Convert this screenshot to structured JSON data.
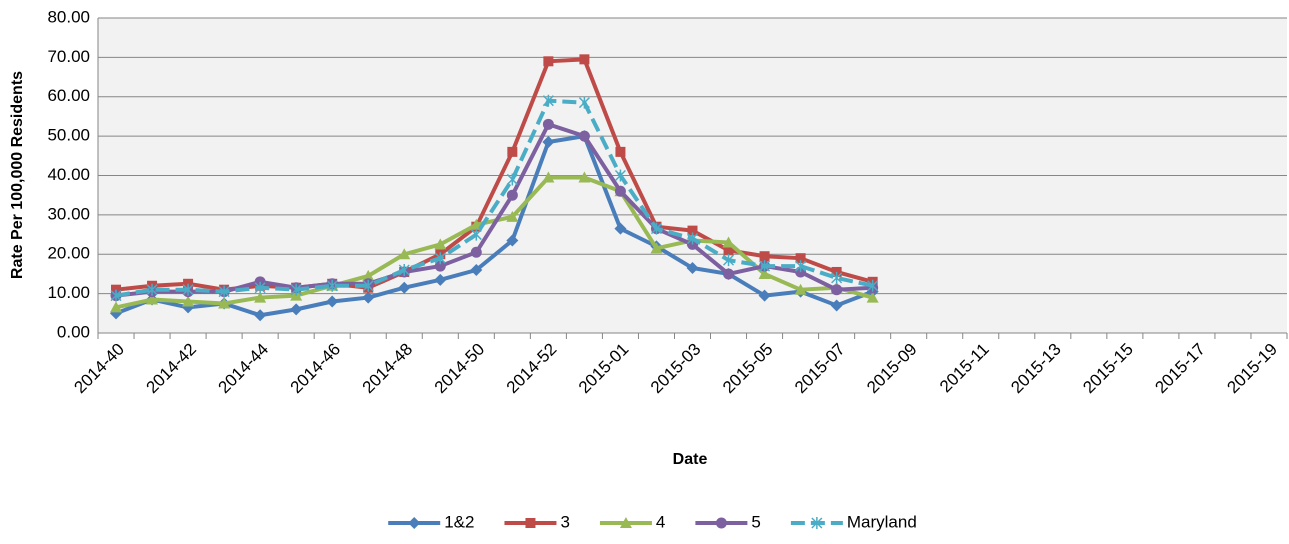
{
  "chart_data": {
    "type": "line",
    "x_label": "Date",
    "y_label": "Rate Per 100,000 Residents",
    "categories": [
      "2014-40",
      null,
      "2014-42",
      null,
      "2014-44",
      null,
      "2014-46",
      null,
      "2014-48",
      null,
      "2014-50",
      null,
      "2014-52",
      null,
      "2015-01",
      null,
      "2015-03",
      null,
      "2015-05",
      null,
      "2015-07",
      null,
      "2015-09",
      null,
      "2015-11",
      null,
      "2015-13",
      null,
      "2015-15",
      null,
      "2015-17",
      null,
      "2015-19"
    ],
    "series": [
      {
        "name": "1&2",
        "color": "#4a7ebb",
        "marker": "diamond",
        "dashed": false,
        "values": [
          5,
          8.5,
          6.5,
          7.5,
          4.5,
          6,
          8,
          9,
          11.5,
          13.5,
          16,
          23.5,
          48.5,
          50,
          26.5,
          22,
          16.5,
          15,
          9.5,
          10.5,
          7,
          10.5,
          null,
          null,
          null,
          null,
          null,
          null,
          null,
          null,
          null,
          null,
          null
        ]
      },
      {
        "name": "3",
        "color": "#be4b48",
        "marker": "square",
        "dashed": false,
        "values": [
          11,
          12,
          12.5,
          11,
          12,
          11.5,
          12.5,
          11.5,
          15.5,
          20,
          27,
          46,
          69,
          69.5,
          46,
          27,
          26,
          21,
          19.5,
          19,
          15.5,
          13,
          null,
          null,
          null,
          null,
          null,
          null,
          null,
          null,
          null,
          null,
          null
        ]
      },
      {
        "name": "4",
        "color": "#98b954",
        "marker": "triangle",
        "dashed": false,
        "values": [
          6.5,
          8.5,
          8,
          7.5,
          9,
          9.5,
          12,
          14.5,
          20,
          22.5,
          27.5,
          29.5,
          39.5,
          39.5,
          36,
          21.5,
          23.5,
          23,
          15,
          11,
          11.5,
          9,
          null,
          null,
          null,
          null,
          null,
          null,
          null,
          null,
          null,
          null,
          null
        ]
      },
      {
        "name": "5",
        "color": "#7d60a0",
        "marker": "circle",
        "dashed": false,
        "values": [
          9.5,
          10.5,
          10.5,
          10.5,
          13,
          11.5,
          12.5,
          12.5,
          15.5,
          17,
          20.5,
          35,
          53,
          50,
          36,
          26.5,
          22.5,
          15,
          17,
          15.5,
          11,
          11.5,
          null,
          null,
          null,
          null,
          null,
          null,
          null,
          null,
          null,
          null,
          null
        ]
      },
      {
        "name": "Maryland",
        "color": "#4bacc6",
        "marker": "star",
        "dashed": true,
        "values": [
          9.5,
          11,
          11,
          10.5,
          11.5,
          11,
          12,
          12,
          16,
          19,
          25,
          39,
          59,
          58.5,
          40,
          26.5,
          24,
          18.5,
          17,
          17,
          14,
          12,
          null,
          null,
          null,
          null,
          null,
          null,
          null,
          null,
          null,
          null,
          null
        ]
      }
    ],
    "ylim": [
      0,
      80
    ],
    "yticks": [
      {
        "value": 0,
        "label": "0.00"
      },
      {
        "value": 10,
        "label": "10.00"
      },
      {
        "value": 20,
        "label": "20.00"
      },
      {
        "value": 30,
        "label": "30.00"
      },
      {
        "value": 40,
        "label": "40.00"
      },
      {
        "value": 50,
        "label": "50.00"
      },
      {
        "value": 60,
        "label": "60.00"
      },
      {
        "value": 70,
        "label": "70.00"
      },
      {
        "value": 80,
        "label": "80.00"
      }
    ],
    "grid": true,
    "legend": "bottom"
  }
}
